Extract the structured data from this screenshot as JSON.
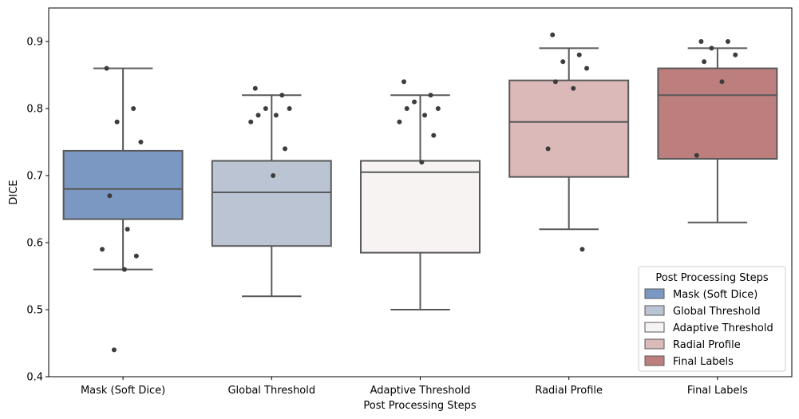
{
  "chart_data": {
    "type": "box",
    "xlabel": "Post Processing Steps",
    "ylabel": "DICE",
    "ylim": [
      0.4,
      0.95
    ],
    "yticks": [
      0.4,
      0.5,
      0.6,
      0.7,
      0.8,
      0.9
    ],
    "ytick_labels": [
      "0.4",
      "0.5",
      "0.6",
      "0.7",
      "0.8",
      "0.9"
    ],
    "grid": false,
    "legend": {
      "title": "Post Processing Steps",
      "placement": "bottom-right"
    },
    "categories": [
      "Mask (Soft Dice)",
      "Global Threshold",
      "Adaptive Threshold",
      "Radial Profile",
      "Final Labels"
    ],
    "series": [
      {
        "name": "Mask (Soft Dice)",
        "color": "#7b98c3",
        "whisker_low": 0.56,
        "q1": 0.635,
        "median": 0.68,
        "q3": 0.737,
        "whisker_high": 0.86,
        "points": [
          0.86,
          0.8,
          0.78,
          0.75,
          0.67,
          0.62,
          0.59,
          0.58,
          0.56,
          0.44
        ]
      },
      {
        "name": "Global Threshold",
        "color": "#bbc4d3",
        "whisker_low": 0.52,
        "q1": 0.595,
        "median": 0.675,
        "q3": 0.722,
        "whisker_high": 0.82,
        "points": [
          0.83,
          0.82,
          0.8,
          0.8,
          0.79,
          0.79,
          0.78,
          0.74,
          0.7
        ]
      },
      {
        "name": "Adaptive Threshold",
        "color": "#f7f3f3",
        "whisker_low": 0.5,
        "q1": 0.585,
        "median": 0.705,
        "q3": 0.722,
        "whisker_high": 0.82,
        "points": [
          0.84,
          0.82,
          0.81,
          0.8,
          0.8,
          0.79,
          0.78,
          0.76,
          0.72
        ]
      },
      {
        "name": "Radial Profile",
        "color": "#dbb9b8",
        "whisker_low": 0.62,
        "q1": 0.698,
        "median": 0.78,
        "q3": 0.842,
        "whisker_high": 0.89,
        "points": [
          0.91,
          0.88,
          0.87,
          0.86,
          0.84,
          0.83,
          0.74,
          0.59
        ]
      },
      {
        "name": "Final Labels",
        "color": "#bd7f7d",
        "whisker_low": 0.63,
        "q1": 0.725,
        "median": 0.82,
        "q3": 0.86,
        "whisker_high": 0.89,
        "points": [
          0.9,
          0.9,
          0.89,
          0.88,
          0.87,
          0.84,
          0.73
        ]
      }
    ]
  }
}
